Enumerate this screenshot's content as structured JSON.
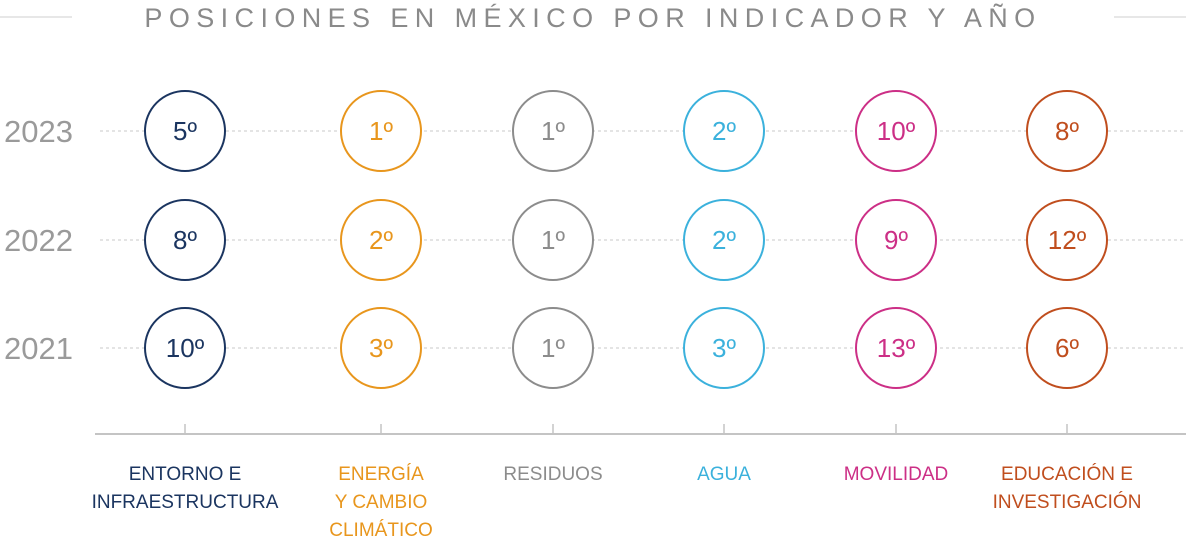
{
  "chart_data": {
    "type": "table",
    "title": "POSICIONES EN MÉXICO POR INDICADOR Y AÑO",
    "rows": [
      "2023",
      "2022",
      "2021"
    ],
    "categories": [
      {
        "lines": [
          "ENTORNO E",
          "INFRAESTRUCTURA"
        ],
        "color": "#1b3560"
      },
      {
        "lines": [
          "ENERGÍA",
          "Y CAMBIO",
          "CLIMÁTICO"
        ],
        "color": "#e8961d"
      },
      {
        "lines": [
          "RESIDUOS"
        ],
        "color": "#8c8c8c"
      },
      {
        "lines": [
          "AGUA"
        ],
        "color": "#3bb1dc"
      },
      {
        "lines": [
          "MOVILIDAD"
        ],
        "color": "#cc2f86"
      },
      {
        "lines": [
          "EDUCACIÓN E",
          "INVESTIGACIÓN"
        ],
        "color": "#c04e1e"
      }
    ],
    "values": [
      [
        "5º",
        "1º",
        "1º",
        "2º",
        "10º",
        "8º"
      ],
      [
        "8º",
        "2º",
        "1º",
        "2º",
        "9º",
        "12º"
      ],
      [
        "10º",
        "3º",
        "1º",
        "3º",
        "13º",
        "6º"
      ]
    ],
    "grid": true,
    "gridline_color": "#c8c8c8",
    "axis_color": "#c4c4c4"
  }
}
